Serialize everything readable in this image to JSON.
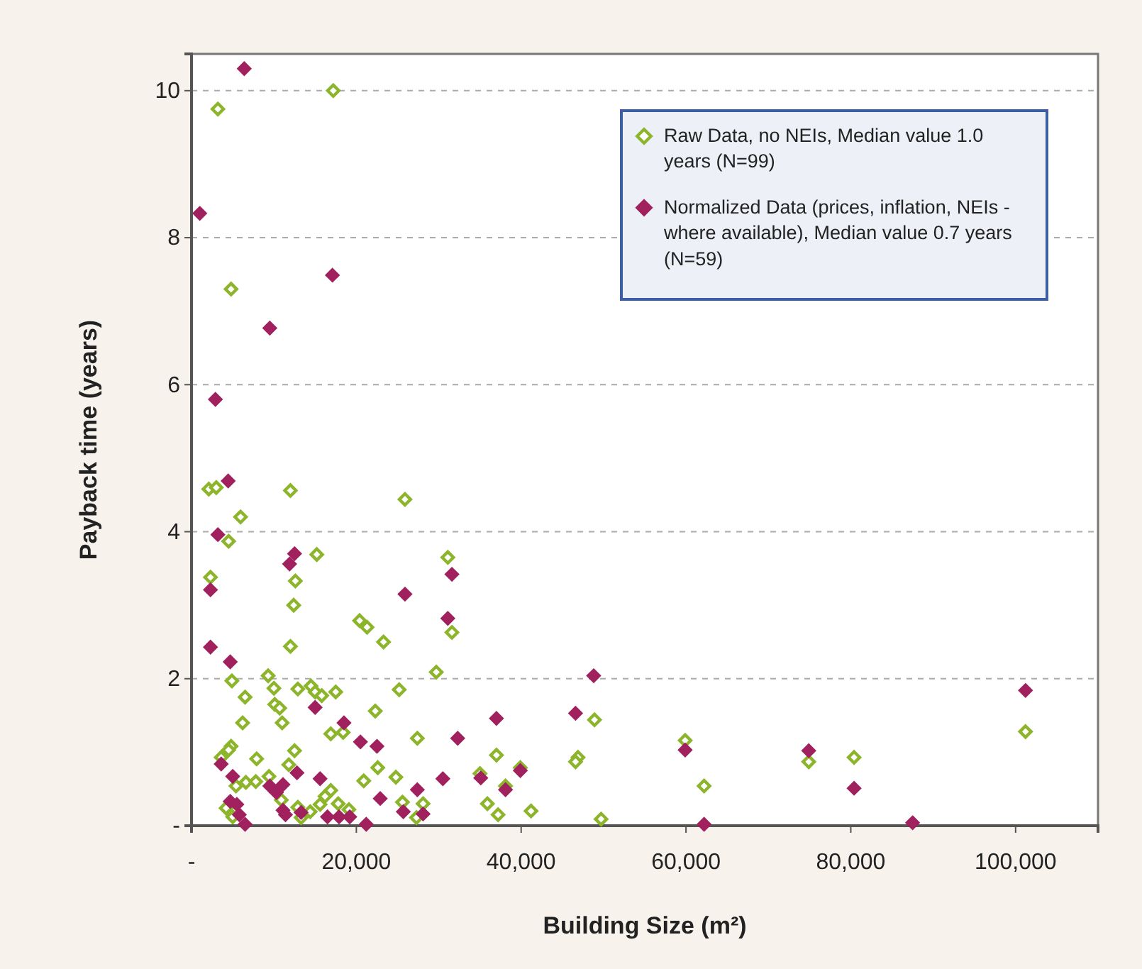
{
  "chart_data": {
    "type": "scatter",
    "xlabel": "Building Size (m²)",
    "ylabel": "Payback time (years)",
    "xlim": [
      0,
      110000
    ],
    "xticks": [
      {
        "value": 0,
        "label": "-"
      },
      {
        "value": 20000,
        "label": "20,000"
      },
      {
        "value": 40000,
        "label": "40,000"
      },
      {
        "value": 60000,
        "label": "60,000"
      },
      {
        "value": 80000,
        "label": "80,000"
      },
      {
        "value": 100000,
        "label": "100,000"
      }
    ],
    "ylim": [
      0,
      10.5
    ],
    "yticks": [
      {
        "value": 0,
        "label": "-"
      },
      2,
      4,
      6,
      8,
      10
    ],
    "grid": "y",
    "legend": "top right",
    "marker": "diamond",
    "series": [
      {
        "name": "Raw Data, no NEIs, Median value 1.0 years (N=99)",
        "color": "#8db52c",
        "x": [
          3200,
          17200,
          4800,
          2100,
          3000,
          12000,
          25900,
          5950,
          4500,
          15200,
          2300,
          12600,
          12400,
          20400,
          21300,
          23300,
          12000,
          29700,
          9300,
          4900,
          10000,
          12900,
          14500,
          15000,
          15800,
          17500,
          25200,
          6500,
          10100,
          10700,
          22300,
          6200,
          11000,
          16900,
          18400,
          27400,
          4800,
          4500,
          12500,
          3600,
          7900,
          11800,
          22600,
          9400,
          24800,
          5400,
          6600,
          7800,
          20900,
          16900,
          16200,
          10900,
          15600,
          17800,
          25600,
          28100,
          4200,
          19100,
          12900,
          14400,
          5000,
          13300,
          27300,
          31100,
          31600,
          48900,
          37000,
          46900,
          46600,
          35000,
          59900,
          62200,
          74900,
          80400,
          101200,
          35900,
          37200,
          41200,
          49700,
          38100,
          39900
        ],
        "values": [
          9.75,
          10.0,
          7.3,
          4.58,
          4.6,
          4.56,
          4.44,
          4.2,
          3.87,
          3.69,
          3.38,
          3.33,
          3.0,
          2.79,
          2.7,
          2.5,
          2.44,
          2.09,
          2.04,
          1.97,
          1.87,
          1.86,
          1.9,
          1.82,
          1.77,
          1.82,
          1.85,
          1.75,
          1.65,
          1.6,
          1.56,
          1.4,
          1.4,
          1.25,
          1.27,
          1.19,
          1.08,
          1.03,
          1.02,
          0.93,
          0.91,
          0.83,
          0.79,
          0.67,
          0.66,
          0.54,
          0.59,
          0.6,
          0.61,
          0.48,
          0.4,
          0.35,
          0.29,
          0.3,
          0.32,
          0.3,
          0.24,
          0.22,
          0.25,
          0.19,
          0.12,
          0.11,
          0.11,
          3.65,
          2.63,
          1.44,
          0.96,
          0.93,
          0.87,
          0.71,
          1.16,
          0.54,
          0.87,
          0.93,
          1.28,
          0.3,
          0.15,
          0.2,
          0.09,
          0.54,
          0.79
        ]
      },
      {
        "name": "Normalized Data (prices, inflation, NEIs - where available), Median value 0.7 years (N=59)",
        "color": "#a0215e",
        "x": [
          6400,
          1000,
          17100,
          9500,
          2900,
          4450,
          3200,
          11900,
          12500,
          2300,
          25900,
          2300,
          4700,
          15000,
          18500,
          20500,
          22500,
          3600,
          5000,
          12800,
          15600,
          9500,
          11100,
          10300,
          27400,
          22900,
          4700,
          5500,
          5800,
          6500,
          11100,
          11400,
          13300,
          16500,
          17900,
          19200,
          21200,
          25700,
          28100,
          30500,
          31600,
          31100,
          48800,
          46600,
          37000,
          32300,
          35100,
          39900,
          38100,
          59900,
          74900,
          80400,
          87500,
          62200,
          101200
        ],
        "values": [
          10.3,
          8.33,
          7.49,
          6.77,
          5.8,
          4.69,
          3.96,
          3.56,
          3.7,
          3.21,
          3.15,
          2.43,
          2.23,
          1.61,
          1.4,
          1.14,
          1.08,
          0.84,
          0.67,
          0.72,
          0.64,
          0.54,
          0.56,
          0.45,
          0.49,
          0.37,
          0.33,
          0.29,
          0.15,
          0.02,
          0.21,
          0.15,
          0.18,
          0.12,
          0.12,
          0.12,
          0.02,
          0.19,
          0.16,
          0.64,
          3.42,
          2.82,
          2.04,
          1.53,
          1.46,
          1.19,
          0.65,
          0.75,
          0.49,
          1.03,
          1.02,
          0.51,
          0.04,
          0.02,
          1.84
        ]
      }
    ]
  }
}
